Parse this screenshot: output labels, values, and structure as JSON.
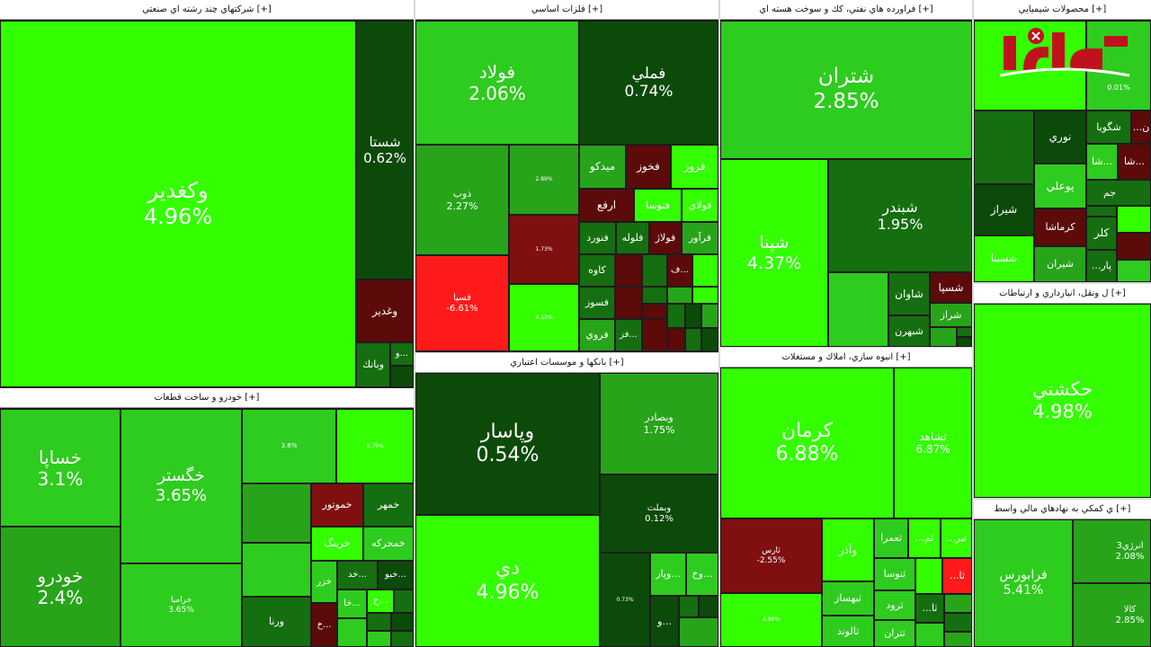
{
  "colors": {
    "bright_green": "#33ff00",
    "green": "#2ecc1e",
    "mid_green": "#27a41a",
    "dark_green": "#156f10",
    "very_dark_green": "#0c4a09",
    "maroon": "#5c0a0a",
    "dark_red": "#801010",
    "red": "#ff1a1a"
  },
  "sectors": {
    "multi": {
      "title": "شرکتهاي چند رشته اي صنعتي [+]"
    },
    "metals": {
      "title": "فلزات اساسي [+]"
    },
    "oil": {
      "title": "فراورده هاي نفتي، كك و سوخت هسته اي [+]"
    },
    "chem": {
      "title": "محصولات شيميايي [+]"
    },
    "auto": {
      "title": "خودرو و ساخت قطعات [+]"
    },
    "banks": {
      "title": "بانكها و موسسات اعتباري [+]"
    },
    "realestate": {
      "title": "انبوه سازي، املاك و مستغلات [+]"
    },
    "transport": {
      "title": "ل ونقل، انبارداري و ارتباطات [+]"
    },
    "finance": {
      "title": "ي كمكي به نهادهاي مالي واسط [+]"
    }
  },
  "tiles": {
    "vaghadir": {
      "name": "وكغدير",
      "pct": "4.96%"
    },
    "shasta": {
      "name": "شستا",
      "pct": "0.62%"
    },
    "vghadir": {
      "name": "وغدير"
    },
    "vaou": {
      "name": "و..."
    },
    "vabank": {
      "name": "وبانك"
    },
    "foolad": {
      "name": "فولاد",
      "pct": "2.06%"
    },
    "fameli": {
      "name": "فملي",
      "pct": "0.74%"
    },
    "zob": {
      "name": "ذوب",
      "pct": "2.27%"
    },
    "small_a": {
      "pct": "2.89%"
    },
    "small_b": {
      "pct": "1.73%"
    },
    "small_c": {
      "pct": "4.13%"
    },
    "fesapa": {
      "name": "فسپا",
      "pct": "-6.61%"
    },
    "midko": {
      "name": "ميدكو"
    },
    "fakhoz": {
      "name": "فخوز"
    },
    "foroz": {
      "name": "فروز"
    },
    "arfa": {
      "name": "ارفع"
    },
    "motosa": {
      "name": "فتوسا"
    },
    "folai": {
      "name": "فولاي"
    },
    "fenurd": {
      "name": "فنورد"
    },
    "folole": {
      "name": "فلوله"
    },
    "folaj": {
      "name": "فولاژ"
    },
    "faravar": {
      "name": "فرآور"
    },
    "kave": {
      "name": "كاوه"
    },
    "fesoz": {
      "name": "فسوز"
    },
    "foravi": {
      "name": "فروي"
    },
    "faz": {
      "name": "فز..."
    },
    "fa_s": {
      "name": "ف..."
    },
    "shatran": {
      "name": "شتران",
      "pct": "2.85%"
    },
    "shabandar": {
      "name": "شبندر",
      "pct": "1.95%"
    },
    "shapna": {
      "name": "شپنا",
      "pct": "4.37%"
    },
    "shesia": {
      "name": "شسپا"
    },
    "shavan": {
      "name": "شاوان"
    },
    "sheraz": {
      "name": "شراز"
    },
    "shebehran": {
      "name": "شبهرن"
    },
    "chem_pct": {
      "pct": "0.01%"
    },
    "noori": {
      "name": "نوري"
    },
    "shegoya": {
      "name": "شگويا"
    },
    "poali": {
      "name": "پوعلي"
    },
    "shiraz": {
      "name": "شيراز"
    },
    "kermasha": {
      "name": "كرماشا"
    },
    "shasina": {
      "name": "شسينا"
    },
    "shiran": {
      "name": "شيران"
    },
    "shijam": {
      "name": "جم"
    },
    "kalar": {
      "name": "كلر"
    },
    "shaa": {
      "name": "شا..."
    },
    "shaa2": {
      "name": "شا..."
    },
    "nn": {
      "name": "...ن"
    },
    "par": {
      "name": "...پار"
    },
    "khesapa": {
      "name": "خساپا",
      "pct": "3.1%"
    },
    "khodro": {
      "name": "خودرو",
      "pct": "2.4%"
    },
    "khegostar": {
      "name": "خگستر",
      "pct": "3.65%"
    },
    "kheramia": {
      "name": "خراميا",
      "pct": "3.65%"
    },
    "small_d": {
      "pct": "3.8%"
    },
    "small_e": {
      "pct": "6.79%"
    },
    "khemotor": {
      "name": "خموتور"
    },
    "khemehr": {
      "name": "خمهر"
    },
    "kherang": {
      "name": "خرينگ"
    },
    "khemhrke": {
      "name": "خمحركه"
    },
    "khazar": {
      "name": "خزر"
    },
    "khad": {
      "name": "خد..."
    },
    "khabo": {
      "name": "خبو..."
    },
    "vorna": {
      "name": "ورنا"
    },
    "kha": {
      "name": "خا..."
    },
    "kh2": {
      "name": "خ..."
    },
    "kh3": {
      "name": "خ..."
    },
    "vepasar": {
      "name": "وپاسار",
      "pct": "0.54%"
    },
    "vebsader": {
      "name": "وبصادر",
      "pct": "1.75%"
    },
    "vebmelat": {
      "name": "وبملت",
      "pct": "0.12%"
    },
    "dey": {
      "name": "دي",
      "pct": "4.96%"
    },
    "small_f": {
      "pct": "0.73%"
    },
    "vepyar": {
      "name": "وپار..."
    },
    "vkh": {
      "name": "وخ..."
    },
    "vo": {
      "name": "و..."
    },
    "kerman": {
      "name": "كرمان",
      "pct": "6.88%"
    },
    "shahed": {
      "name": "ثشاهد",
      "pct": "6.87%"
    },
    "tharas": {
      "name": "ثارس",
      "pct": "-2.55%"
    },
    "small_g": {
      "pct": "4.99%"
    },
    "vazar": {
      "name": "وآذر"
    },
    "samra": {
      "name": "ثعمرا"
    },
    "tham": {
      "name": "...ثم"
    },
    "thir": {
      "name": "...ثير"
    },
    "thenosa": {
      "name": "ثنوسا"
    },
    "tha_r": {
      "name": "...ثا"
    },
    "thebhsaz": {
      "name": "ثبهساز"
    },
    "sarvd": {
      "name": "ثرود"
    },
    "tha2": {
      "name": "...ثا"
    },
    "thaloand": {
      "name": "ثالوند"
    },
    "thetran": {
      "name": "ثتران"
    },
    "hakashti": {
      "name": "حكشتي",
      "pct": "4.98%"
    },
    "farabors": {
      "name": "فرابورس",
      "pct": "5.41%"
    },
    "anrji3": {
      "name": "انرژي3",
      "pct": "2.08%"
    },
    "kala": {
      "name": "كالا",
      "pct": "2.85%"
    }
  }
}
